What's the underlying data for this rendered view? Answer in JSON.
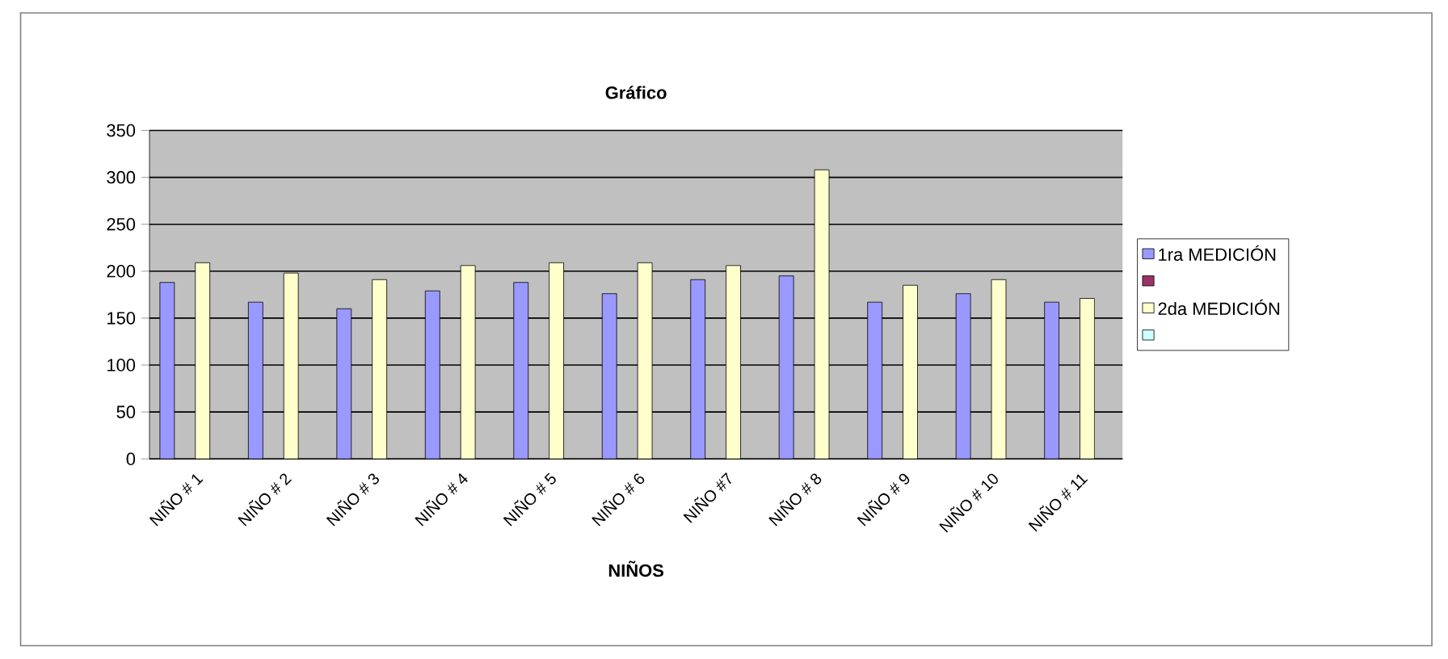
{
  "chart_data": {
    "type": "bar",
    "title": "Gráfico",
    "xlabel": "NIÑOS",
    "categories": [
      "NIÑO # 1",
      "NIÑO # 2",
      "NIÑO # 3",
      "NIÑO # 4",
      "NIÑO # 5",
      "NIÑO # 6",
      "NIÑO #7",
      "NIÑO # 8",
      "NIÑO # 9",
      "NIÑO # 10",
      "NIÑO # 11"
    ],
    "series": [
      {
        "name": "1ra MEDICIÓN",
        "color": "#9999ff",
        "values": [
          188,
          167,
          160,
          179,
          188,
          176,
          191,
          195,
          167,
          176,
          167
        ]
      },
      {
        "color": "#993366",
        "values": [
          null,
          null,
          null,
          null,
          null,
          null,
          null,
          null,
          null,
          null,
          null
        ]
      },
      {
        "name": "2da MEDICIÓN",
        "color": "#ffffcc",
        "values": [
          209,
          198,
          191,
          206,
          209,
          209,
          206,
          308,
          185,
          191,
          171
        ]
      },
      {
        "color": "#ccffff",
        "values": [
          null,
          null,
          null,
          null,
          null,
          null,
          null,
          null,
          null,
          null,
          null
        ]
      }
    ],
    "ylim": [
      0,
      350
    ],
    "yticks": [
      0,
      50,
      100,
      150,
      200,
      250,
      300,
      350
    ],
    "grid": "y",
    "legend": "right"
  }
}
